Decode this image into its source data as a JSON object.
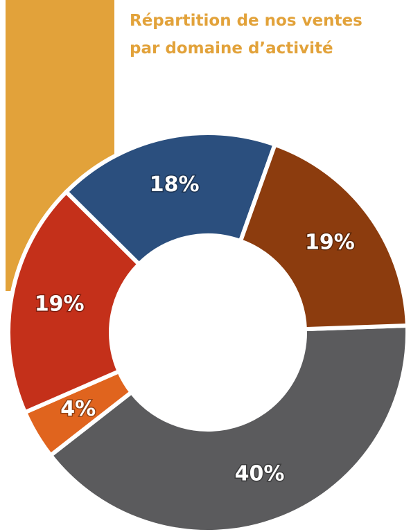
{
  "chart_data": {
    "type": "donut",
    "title": "Répartition de nos ventes par domaine d’activité",
    "values": [
      40,
      4,
      19,
      18,
      19
    ],
    "value_labels": [
      "40%",
      "4%",
      "19%",
      "18%",
      "19%"
    ],
    "colors": [
      "#5b5b5d",
      "#e0641e",
      "#c4301a",
      "#2b4f7e",
      "#8c3c0e"
    ]
  }
}
